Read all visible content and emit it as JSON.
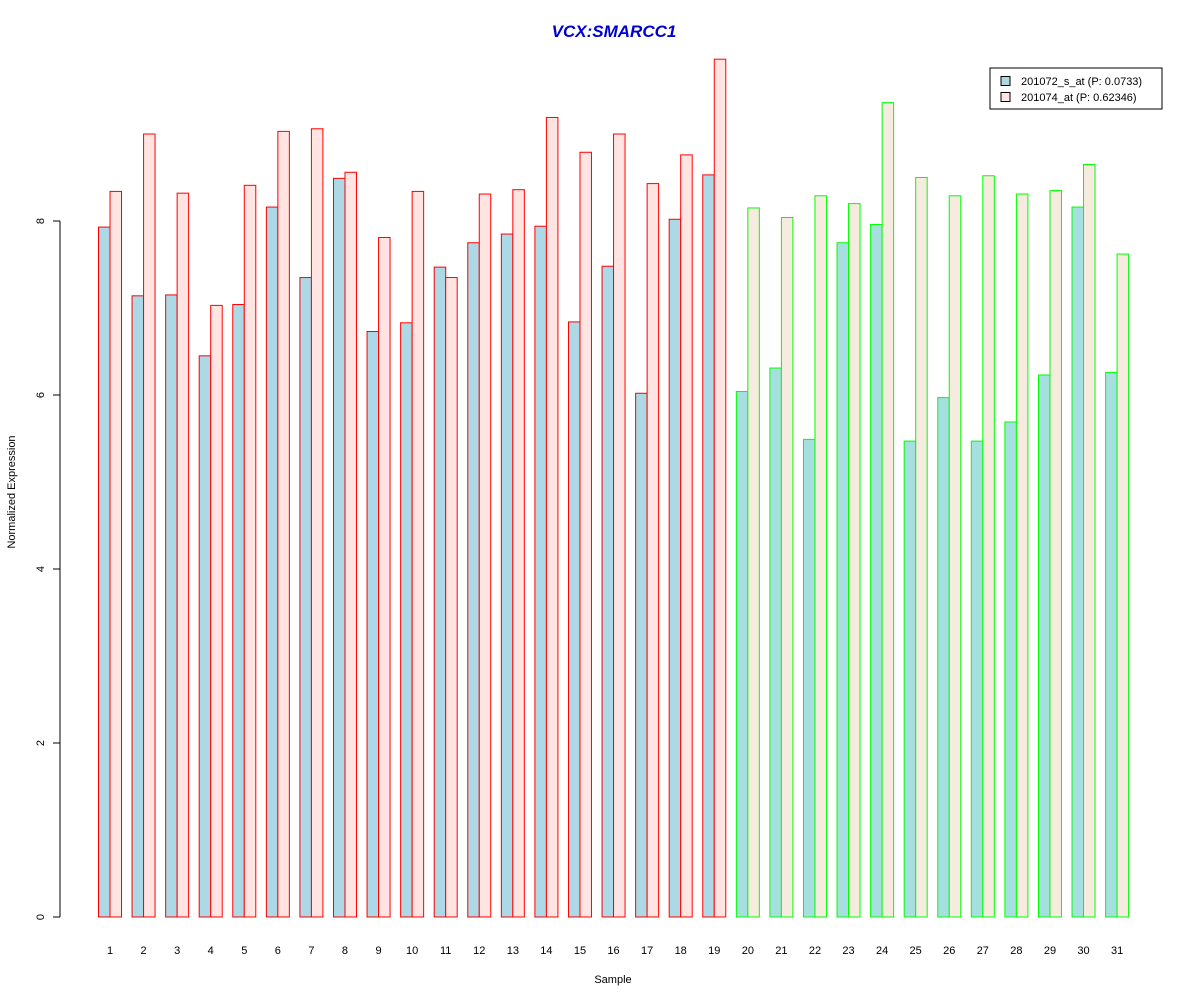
{
  "chart_data": {
    "type": "bar",
    "title": "VCX:SMARCC1",
    "xlabel": "Sample",
    "ylabel": "Normalized Expression",
    "ylim": [
      0,
      10
    ],
    "yticks": [
      0,
      2,
      4,
      6,
      8
    ],
    "grid": false,
    "legend_position": "top-right",
    "categories": [
      "1",
      "2",
      "3",
      "4",
      "5",
      "6",
      "7",
      "8",
      "9",
      "10",
      "11",
      "12",
      "13",
      "14",
      "15",
      "16",
      "17",
      "18",
      "19",
      "20",
      "21",
      "22",
      "23",
      "24",
      "25",
      "26",
      "27",
      "28",
      "29",
      "30",
      "31"
    ],
    "groups": [
      {
        "from": 1,
        "to": 19,
        "edge_color": "#ff0000",
        "fills": [
          "#add8e6",
          "#ffe4e1"
        ]
      },
      {
        "from": 20,
        "to": 31,
        "edge_color": "#00ff00",
        "fills": [
          "#a6dfe0",
          "#f5ebdf"
        ]
      }
    ],
    "series": [
      {
        "name": "201072_s_at (P: 0.0733)",
        "legend_fill": "#add8e6",
        "values": [
          7.93,
          7.14,
          7.15,
          6.45,
          7.04,
          8.16,
          7.35,
          8.49,
          6.73,
          6.83,
          7.47,
          7.75,
          7.85,
          7.94,
          6.84,
          7.48,
          6.02,
          8.02,
          8.53,
          6.04,
          6.31,
          5.49,
          7.75,
          7.96,
          5.47,
          5.97,
          5.47,
          5.69,
          6.23,
          8.16,
          6.26
        ]
      },
      {
        "name": "201074_at (P: 0.62346)",
        "legend_fill": "#ffe4e1",
        "values": [
          8.34,
          9.0,
          8.32,
          7.03,
          8.41,
          9.03,
          9.06,
          8.56,
          7.81,
          8.34,
          7.35,
          8.31,
          8.36,
          9.19,
          8.79,
          9.0,
          8.43,
          8.76,
          9.86,
          8.15,
          8.04,
          8.29,
          8.2,
          9.36,
          8.5,
          8.29,
          8.52,
          8.31,
          8.35,
          8.65,
          7.62
        ]
      }
    ],
    "colors": {
      "title": "#0000cd",
      "axis": "#000000"
    }
  }
}
